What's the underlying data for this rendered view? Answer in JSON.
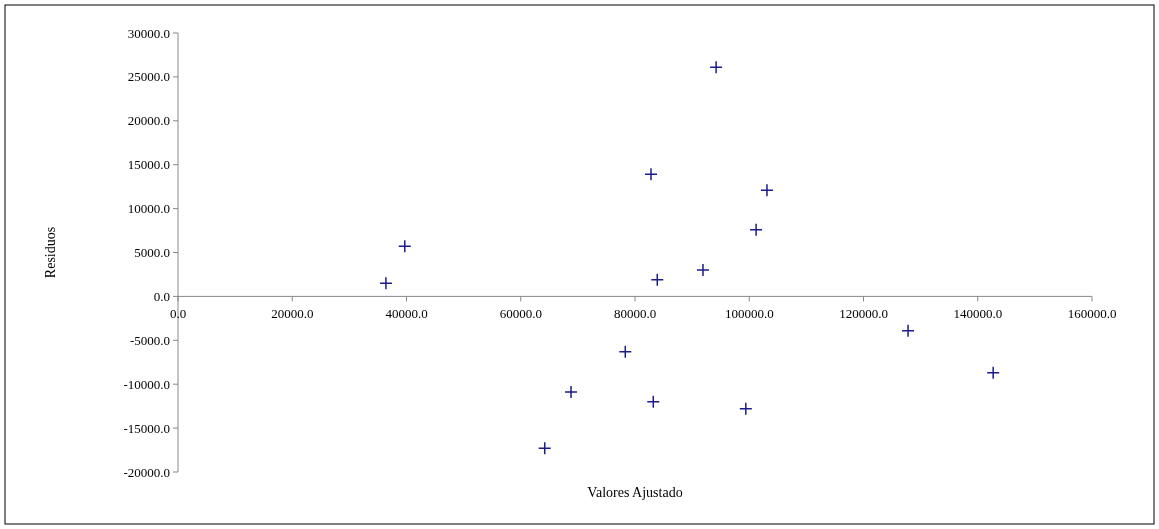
{
  "chart_data": {
    "type": "scatter",
    "xlabel": "Valores Ajustado",
    "ylabel": "Residuos",
    "marker": "cross",
    "grid": false,
    "xlim": [
      0,
      160000
    ],
    "ylim": [
      -20000,
      30000
    ],
    "xticks": [
      {
        "value": 0,
        "label": "0.0"
      },
      {
        "value": 20000,
        "label": "20000.0"
      },
      {
        "value": 40000,
        "label": "40000.0"
      },
      {
        "value": 60000,
        "label": "60000.0"
      },
      {
        "value": 80000,
        "label": "80000.0"
      },
      {
        "value": 100000,
        "label": "100000.0"
      },
      {
        "value": 120000,
        "label": "120000.0"
      },
      {
        "value": 140000,
        "label": "140000.0"
      },
      {
        "value": 160000,
        "label": "160000.0"
      }
    ],
    "yticks": [
      {
        "value": -20000,
        "label": "-20000.0"
      },
      {
        "value": -15000,
        "label": "-15000.0"
      },
      {
        "value": -10000,
        "label": "-10000.0"
      },
      {
        "value": -5000,
        "label": "-5000.0"
      },
      {
        "value": 0,
        "label": "0.0"
      },
      {
        "value": 5000,
        "label": "5000.0"
      },
      {
        "value": 10000,
        "label": "10000.0"
      },
      {
        "value": 15000,
        "label": "15000.0"
      },
      {
        "value": 20000,
        "label": "20000.0"
      },
      {
        "value": 25000,
        "label": "25000.0"
      },
      {
        "value": 30000,
        "label": "30000.0"
      }
    ],
    "series": [
      {
        "color": "#1c1c8c",
        "x": [
          36400,
          39700,
          94200,
          82800,
          103100,
          101200,
          83900,
          91900,
          78300,
          68800,
          83200,
          64200,
          99400,
          127800,
          142700
        ],
        "values": [
          1500,
          5700,
          26100,
          13900,
          12100,
          7600,
          1900,
          3000,
          -6300,
          -10900,
          -12000,
          -17300,
          -12800,
          -3900,
          -8700
        ]
      }
    ]
  }
}
